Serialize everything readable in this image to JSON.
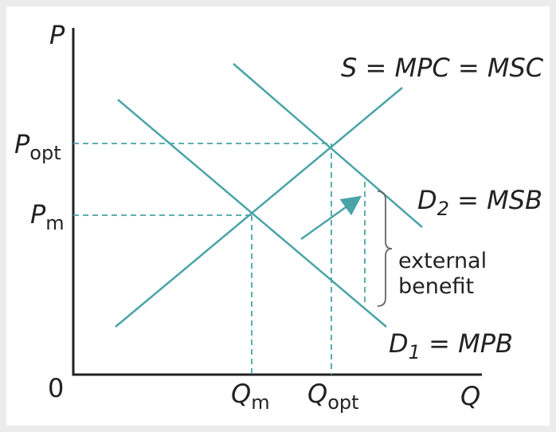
{
  "axes": {
    "y_label": "P",
    "x_label": "Q",
    "origin": "0"
  },
  "price_labels": [
    {
      "main": "P",
      "sub": "opt"
    },
    {
      "main": "P",
      "sub": "m"
    }
  ],
  "quantity_labels": [
    {
      "main": "Q",
      "sub": "m"
    },
    {
      "main": "Q",
      "sub": "opt"
    }
  ],
  "curves": {
    "supply": "S = MPC = MSC",
    "d2": {
      "main": "D",
      "sub": "2",
      "rest": " = MSB"
    },
    "d1": {
      "main": "D",
      "sub": "1",
      "rest": " = MPB"
    }
  },
  "annotation": [
    "external",
    "benefit"
  ]
}
